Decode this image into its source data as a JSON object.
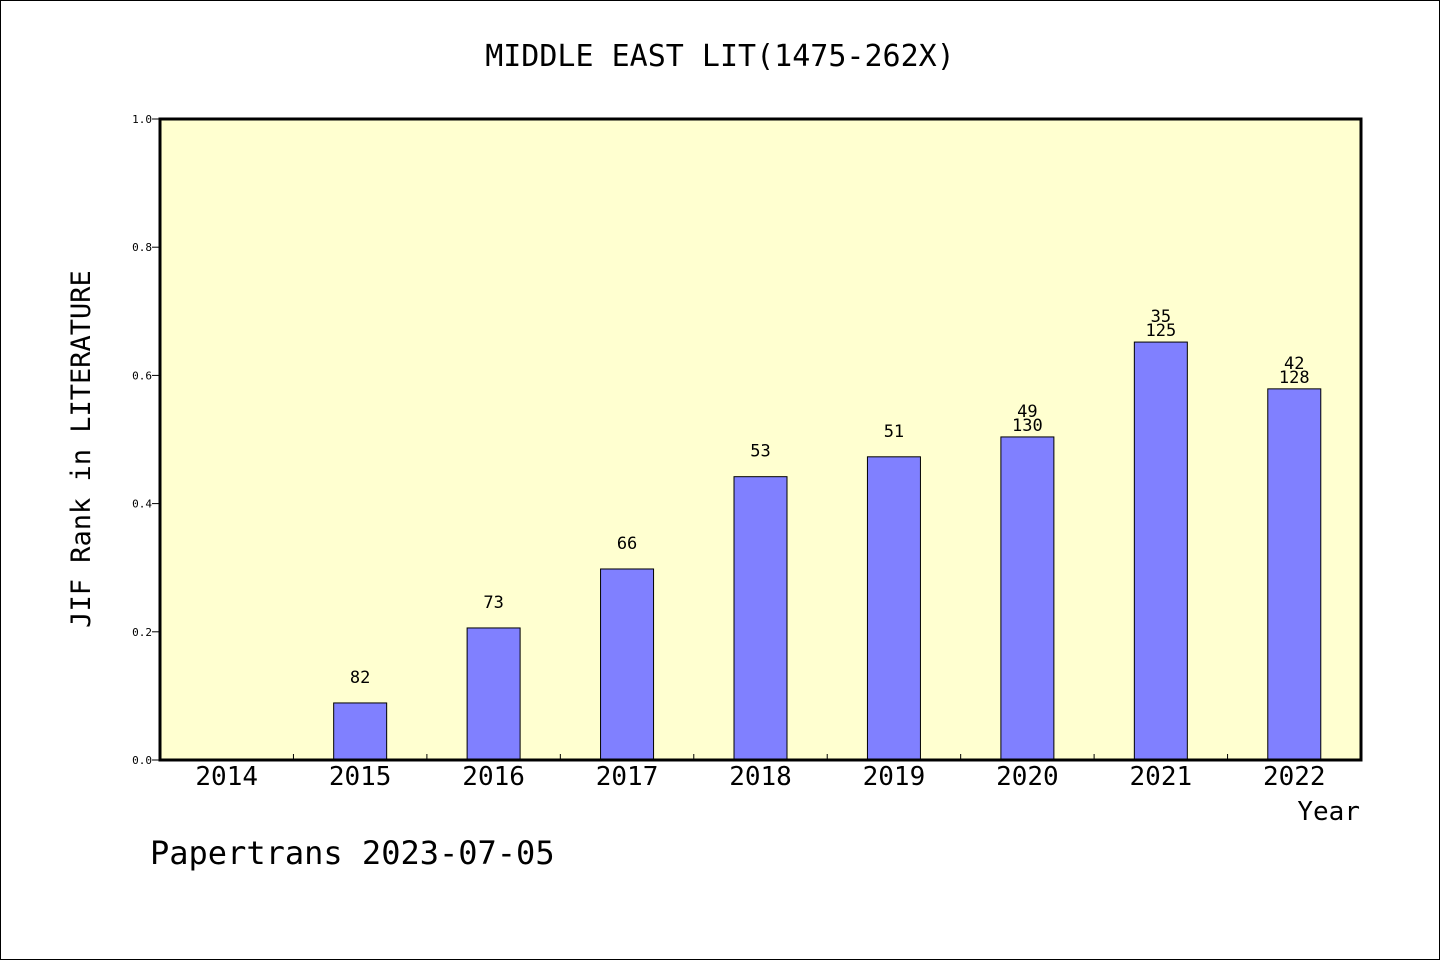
{
  "chart_data": {
    "type": "bar",
    "title": "MIDDLE EAST LIT(1475-262X)",
    "xlabel": "Year",
    "ylabel": "JIF Rank in LITERATURE",
    "footer": "Papertrans 2023-07-05",
    "categories": [
      "2014",
      "2015",
      "2016",
      "2017",
      "2018",
      "2019",
      "2020",
      "2021",
      "2022"
    ],
    "values": [
      null,
      0.089,
      0.206,
      0.298,
      0.442,
      0.473,
      0.504,
      0.652,
      0.579
    ],
    "rank_labels": [
      "",
      "82",
      "73",
      "66",
      "53",
      "51",
      "49",
      "35",
      "42"
    ],
    "total_labels": [
      "",
      "",
      "",
      "",
      "",
      "",
      "130",
      "125",
      "128"
    ],
    "ylim": [
      0,
      1.0
    ],
    "yticks": [
      "0.0",
      "0.2",
      "0.4",
      "0.6",
      "0.8",
      "1.0"
    ],
    "grid": false,
    "colors": {
      "plot_background": "#ffffd0",
      "bar_fill": "#8080ff",
      "bar_stroke": "#000000",
      "frame": "#000000"
    }
  }
}
